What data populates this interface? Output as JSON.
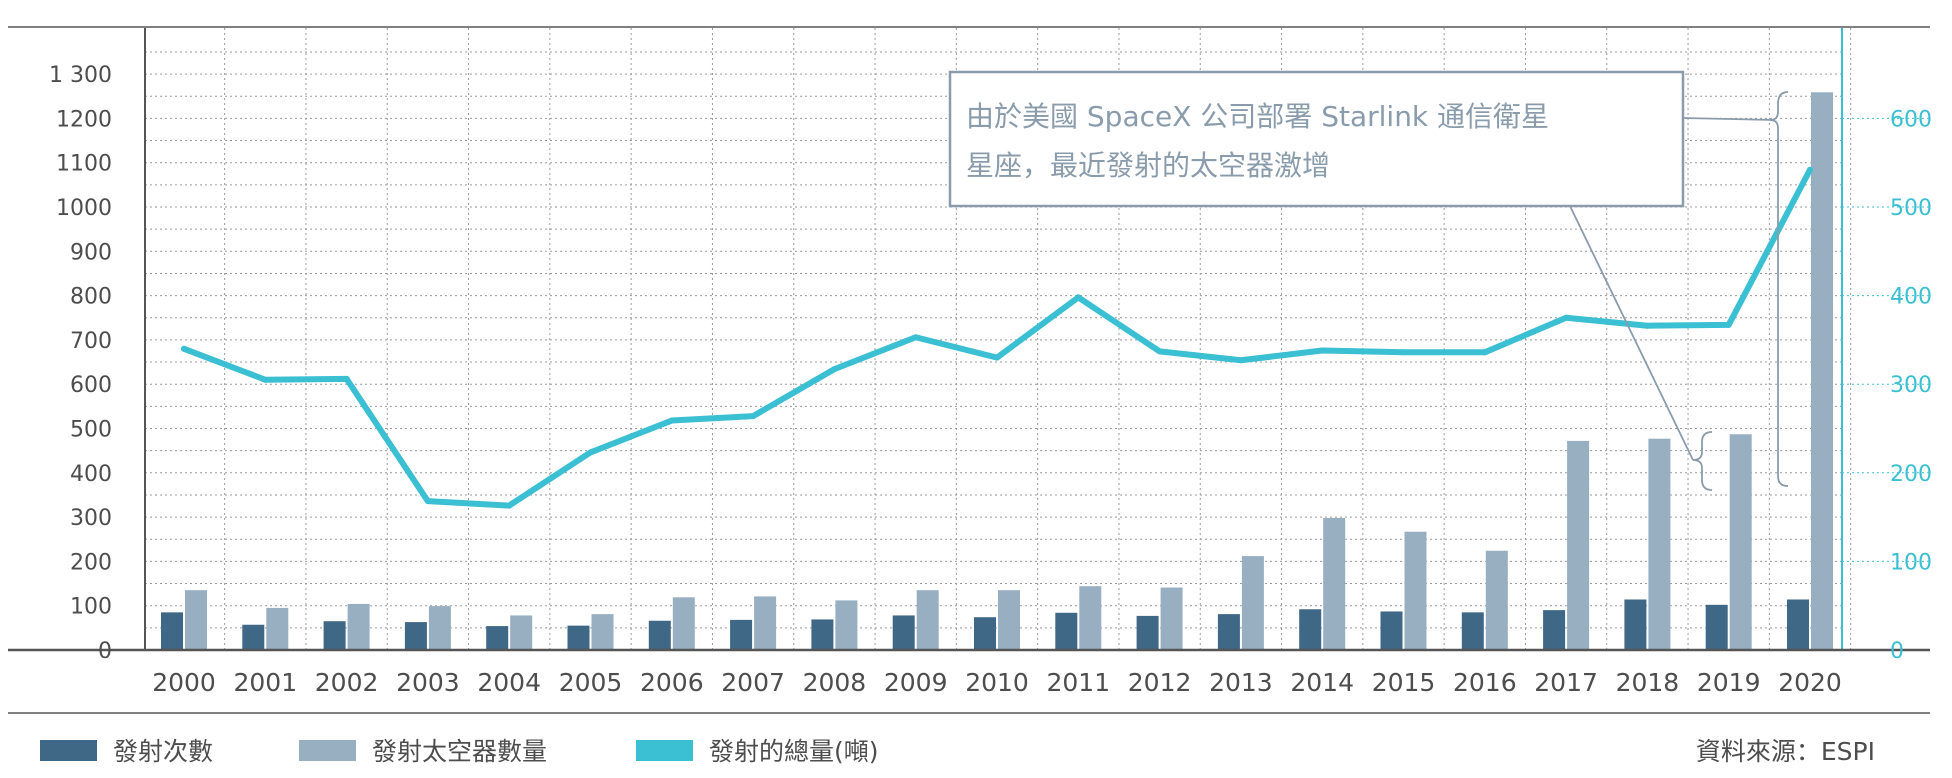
{
  "chart_data": {
    "type": "bar",
    "categories": [
      "2000",
      "2001",
      "2002",
      "2003",
      "2004",
      "2005",
      "2006",
      "2007",
      "2008",
      "2009",
      "2010",
      "2011",
      "2012",
      "2013",
      "2014",
      "2015",
      "2016",
      "2017",
      "2018",
      "2019",
      "2020"
    ],
    "series": [
      {
        "name": "發射次數",
        "chart": "bar",
        "axis": "left",
        "color": "#3f6886",
        "values": [
          85,
          57,
          65,
          63,
          54,
          55,
          66,
          68,
          69,
          78,
          74,
          84,
          77,
          81,
          92,
          87,
          85,
          90,
          114,
          102,
          114
        ]
      },
      {
        "name": "發射太空器數量",
        "chart": "bar",
        "axis": "left",
        "color": "#97afc1",
        "values": [
          135,
          95,
          104,
          99,
          78,
          81,
          119,
          121,
          112,
          135,
          135,
          144,
          141,
          212,
          298,
          267,
          224,
          472,
          477,
          487,
          1259
        ]
      },
      {
        "name": "發射的總量(噸)",
        "chart": "line",
        "axis": "right",
        "color": "#3bbfd3",
        "values": [
          340,
          305,
          306,
          168,
          163,
          223,
          259,
          264,
          317,
          353,
          330,
          398,
          337,
          327,
          338,
          336,
          336,
          375,
          366,
          367,
          542
        ]
      }
    ],
    "left_axis": {
      "ylim": [
        0,
        1350
      ],
      "ticks": [
        0,
        100,
        200,
        300,
        400,
        500,
        600,
        700,
        800,
        900,
        1000,
        1100,
        1200,
        1300
      ],
      "tick_labels": [
        "0",
        "100",
        "200",
        "300",
        "400",
        "500",
        "600",
        "700",
        "800",
        "900",
        "1000",
        "1100",
        "1200",
        "1 300"
      ]
    },
    "right_axis": {
      "ylim": [
        0,
        675
      ],
      "ticks": [
        0,
        100,
        200,
        300,
        400,
        500,
        600
      ],
      "tick_labels": [
        "0",
        "100",
        "200",
        "300",
        "400",
        "500",
        "600"
      ]
    },
    "grid": true,
    "legend_position": "bottom-left",
    "annotation": {
      "lines": [
        "由於美國 SpaceX 公司部署 Starlink 通信衛星",
        "星座，最近發射的太空器激增"
      ]
    },
    "source": "資料來源：ESPI"
  }
}
